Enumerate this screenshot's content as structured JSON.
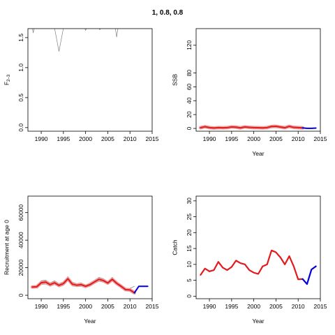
{
  "figure_title": "1, 0.8, 0.8",
  "chart_data": [
    {
      "id": "F",
      "type": "line",
      "title": "",
      "xlabel": "",
      "ylabel": "F",
      "ylabel_sub": "2–3",
      "xlim": [
        1987,
        2015
      ],
      "ylim": [
        -0.06,
        1.65
      ],
      "xticks": [
        1990,
        1995,
        2000,
        2005,
        2010,
        2015
      ],
      "yticks": [
        0.0,
        0.5,
        1.0,
        1.5
      ],
      "ytick_labels": [
        "0.0",
        "0.5",
        "1.0",
        "1.5"
      ],
      "grid": false,
      "legend": "none",
      "series": [
        {
          "color": "#808080",
          "width": 0.7,
          "x": [
            1988,
            1988.2,
            1988.4,
            1993,
            1994,
            1995,
            1995.2,
            1999.8,
            2000,
            2000.2,
            2003,
            2003.2,
            2003.4,
            2006.7,
            2007,
            2007.3,
            2012.5
          ],
          "y": [
            1.66,
            1.58,
            1.66,
            1.66,
            1.27,
            1.66,
            1.66,
            1.66,
            1.62,
            1.66,
            1.66,
            1.63,
            1.66,
            1.66,
            1.51,
            1.66,
            1.66
          ]
        }
      ]
    },
    {
      "id": "SSB",
      "type": "line",
      "title": "",
      "xlabel": "Year",
      "ylabel": "SSB",
      "xlim": [
        1987,
        2015
      ],
      "ylim": [
        -4,
        144
      ],
      "xticks": [
        1990,
        1995,
        2000,
        2005,
        2010,
        2015
      ],
      "yticks": [
        0,
        20,
        40,
        60,
        80,
        120
      ],
      "ytick_labels": [
        "0",
        "20",
        "40",
        "60",
        "80",
        "120"
      ],
      "grid": false,
      "legend": "none",
      "series": [
        {
          "color": "#e8a0a0",
          "width": 5,
          "x": [
            1988,
            1989,
            1990,
            1991,
            1992,
            1993,
            1994,
            1995,
            1996,
            1997,
            1998,
            1999,
            2000,
            2001,
            2002,
            2003,
            2004,
            2005,
            2006,
            2007,
            2008,
            2009,
            2010,
            2011
          ],
          "y": [
            1.0,
            2.5,
            1.2,
            0.6,
            1.1,
            0.9,
            1.1,
            2.2,
            1.8,
            0.8,
            2.2,
            1.5,
            1.2,
            1.0,
            0.8,
            1.2,
            2.8,
            3.0,
            2.0,
            1.0,
            3.0,
            1.5,
            1.2,
            0.8
          ]
        },
        {
          "color": "#e31a1c",
          "width": 2,
          "x": [
            1988,
            1989,
            1990,
            1991,
            1992,
            1993,
            1994,
            1995,
            1996,
            1997,
            1998,
            1999,
            2000,
            2001,
            2002,
            2003,
            2004,
            2005,
            2006,
            2007,
            2008,
            2009,
            2010,
            2011
          ],
          "y": [
            1.0,
            2.5,
            1.2,
            0.6,
            1.1,
            0.9,
            1.1,
            2.2,
            1.8,
            0.8,
            2.2,
            1.5,
            1.2,
            1.0,
            0.8,
            1.2,
            2.8,
            3.0,
            2.0,
            1.0,
            3.0,
            1.5,
            1.2,
            0.8
          ]
        },
        {
          "color": "#0000dd",
          "width": 2,
          "x": [
            2011,
            2012,
            2013,
            2014
          ],
          "y": [
            0.8,
            0.2,
            0.1,
            0.5
          ]
        }
      ]
    },
    {
      "id": "Recruitment",
      "type": "line",
      "title": "",
      "xlabel": "Year",
      "ylabel": "Recruitment at age 0",
      "xlim": [
        1987,
        2015
      ],
      "ylim": [
        -2500,
        72000
      ],
      "xticks": [
        1990,
        1995,
        2000,
        2005,
        2010,
        2015
      ],
      "yticks": [
        0,
        20000,
        40000,
        60000
      ],
      "ytick_labels": [
        "0",
        "20000",
        "40000",
        "60000"
      ],
      "grid": false,
      "legend": "none",
      "series": [
        {
          "color": "#777777",
          "width": 0.7,
          "x": [
            1988,
            1989,
            1990,
            1991,
            1992,
            1993,
            1994,
            1995,
            1996,
            1997,
            1998,
            1999,
            2000,
            2001,
            2002,
            2003,
            2004,
            2005,
            2006,
            2007,
            2008,
            2009,
            2010,
            2011
          ],
          "y": [
            6800,
            7000,
            10500,
            11000,
            9000,
            10500,
            8500,
            9800,
            13500,
            9500,
            8500,
            9000,
            7500,
            9000,
            11000,
            13000,
            12000,
            10000,
            13000,
            10000,
            7500,
            5000,
            5000,
            6500
          ]
        },
        {
          "color": "#777777",
          "width": 0.7,
          "x": [
            1988,
            1989,
            1990,
            1991,
            1992,
            1993,
            1994,
            1995,
            1996,
            1997,
            1998,
            1999,
            2000,
            2001,
            2002,
            2003,
            2004,
            2005,
            2006,
            2007,
            2008,
            2009,
            2010,
            2011
          ],
          "y": [
            5200,
            5500,
            7800,
            8200,
            6500,
            7800,
            6000,
            7200,
            10500,
            6800,
            6200,
            6500,
            5500,
            6500,
            8500,
            10200,
            9500,
            7800,
            10200,
            7500,
            5500,
            3200,
            2800,
            1500
          ]
        },
        {
          "color": "#e8a0a0",
          "width": 5,
          "x": [
            1988,
            1989,
            1990,
            1991,
            1992,
            1993,
            1994,
            1995,
            1996,
            1997,
            1998,
            1999,
            2000,
            2001,
            2002,
            2003,
            2004,
            2005,
            2006,
            2007,
            2008,
            2009,
            2010,
            2011
          ],
          "y": [
            6000,
            6200,
            9100,
            9600,
            7700,
            9100,
            7200,
            8500,
            12000,
            8100,
            7300,
            7700,
            6500,
            7700,
            9700,
            11600,
            10700,
            8900,
            11600,
            8700,
            6500,
            4100,
            3900,
            1800
          ]
        },
        {
          "color": "#e31a1c",
          "width": 2,
          "x": [
            1988,
            1989,
            1990,
            1991,
            1992,
            1993,
            1994,
            1995,
            1996,
            1997,
            1998,
            1999,
            2000,
            2001,
            2002,
            2003,
            2004,
            2005,
            2006,
            2007,
            2008,
            2009,
            2010,
            2011
          ],
          "y": [
            6000,
            6200,
            9100,
            9600,
            7700,
            9100,
            7200,
            8500,
            12000,
            8100,
            7300,
            7700,
            6500,
            7700,
            9700,
            11600,
            10700,
            8900,
            11600,
            8700,
            6500,
            4100,
            3900,
            1800
          ]
        },
        {
          "color": "#0000dd",
          "width": 2,
          "x": [
            2011,
            2012,
            2013,
            2014
          ],
          "y": [
            1800,
            6500,
            6500,
            6500
          ]
        }
      ]
    },
    {
      "id": "Catch",
      "type": "line",
      "title": "",
      "xlabel": "Year",
      "ylabel": "Catch",
      "xlim": [
        1987,
        2015
      ],
      "ylim": [
        -0.8,
        31.5
      ],
      "xticks": [
        1990,
        1995,
        2000,
        2005,
        2010,
        2015
      ],
      "yticks": [
        0,
        5,
        10,
        15,
        20,
        25,
        30
      ],
      "ytick_labels": [
        "0",
        "5",
        "10",
        "15",
        "20",
        "25",
        "30"
      ],
      "grid": false,
      "legend": "none",
      "series": [
        {
          "color": "#e31a1c",
          "width": 2.2,
          "x": [
            1988,
            1989,
            1990,
            1991,
            1992,
            1993,
            1994,
            1995,
            1996,
            1997,
            1998,
            1999,
            2000,
            2001,
            2002,
            2003,
            2004,
            2005,
            2006,
            2007,
            2008,
            2009,
            2010,
            2011
          ],
          "y": [
            6.7,
            8.7,
            7.8,
            8.2,
            10.8,
            9.0,
            8.2,
            9.2,
            11.2,
            10.4,
            10.0,
            8.2,
            7.4,
            7.0,
            9.4,
            10.0,
            14.4,
            13.8,
            12.2,
            10.0,
            12.6,
            9.4,
            5.3,
            5.4
          ]
        },
        {
          "color": "#0000dd",
          "width": 2.2,
          "x": [
            2011,
            2012,
            2013,
            2014
          ],
          "y": [
            5.4,
            3.8,
            8.4,
            9.4
          ]
        }
      ]
    }
  ]
}
